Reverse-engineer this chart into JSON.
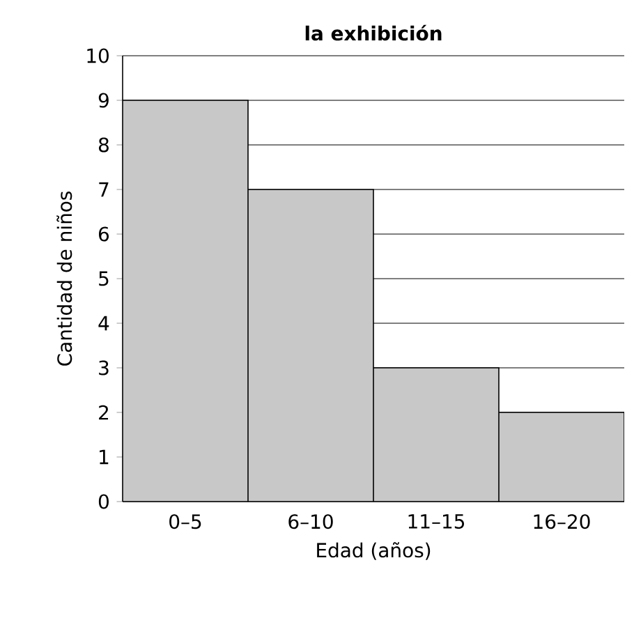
{
  "chart_data": {
    "type": "bar",
    "title": "la exhibición",
    "xlabel": "Edad (años)",
    "ylabel": "Cantidad de niños",
    "categories": [
      "0–5",
      "6–10",
      "11–15",
      "16–20"
    ],
    "values": [
      9,
      7,
      3,
      2
    ],
    "color": "#c8c8c8",
    "ylim": [
      0,
      10
    ],
    "yticks": [
      0,
      1,
      2,
      3,
      4,
      5,
      6,
      7,
      8,
      9,
      10
    ],
    "grid": "y"
  }
}
